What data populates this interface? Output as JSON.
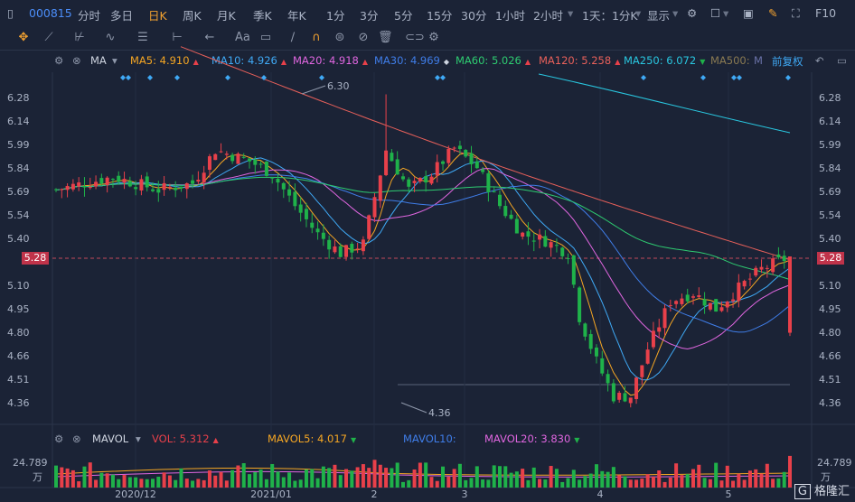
{
  "header": {
    "stock_code": "000815",
    "periods": [
      "分时",
      "多日",
      "日K",
      "周K",
      "月K",
      "季K",
      "年K",
      "1分",
      "3分",
      "5分",
      "15分",
      "30分",
      "1小时",
      "2小时"
    ],
    "active_period": "日K",
    "range_label": "1天：1分K",
    "display_label": "显示",
    "right_label": "F10"
  },
  "ma_legend": {
    "type_label": "MA",
    "items": [
      {
        "label": "MA5: 4.910",
        "color": "#f5a623"
      },
      {
        "label": "MA10: 4.926",
        "color": "#3fa9f5"
      },
      {
        "label": "MA20: 4.918",
        "color": "#e066e0"
      },
      {
        "label": "MA30: 4.969",
        "color": "#3f7de8"
      },
      {
        "label": "MA60: 5.026",
        "color": "#2ecc71"
      },
      {
        "label": "MA120: 5.258",
        "color": "#e8605a"
      },
      {
        "label": "MA250: 6.072",
        "color": "#29c7e0"
      },
      {
        "label": "MA500:",
        "color": "#8a7a52"
      }
    ],
    "adjust_label": "前复权"
  },
  "price_axis": {
    "ticks": [
      "6.28",
      "6.14",
      "5.99",
      "5.84",
      "5.69",
      "5.54",
      "5.40",
      "5.28",
      "5.10",
      "4.95",
      "4.80",
      "4.66",
      "4.51",
      "4.36"
    ],
    "current": "5.28",
    "high_label": "6.30",
    "low_label": "4.36"
  },
  "date_axis": [
    "2020/12",
    "2021/01",
    "2",
    "3",
    "4",
    "5"
  ],
  "volume_legend": {
    "type_label": "MAVOL",
    "vol": "VOL: 5.312",
    "mavol5": "MAVOL5: 4.017",
    "mavol10": "MAVOL10:",
    "mavol20": "MAVOL20: 3.830",
    "axis_top": "24.789",
    "axis_unit": "万"
  },
  "watermark": "格隆汇",
  "colors": {
    "up": "#e8404a",
    "down": "#1fb24a",
    "background": "#1b2336"
  }
}
